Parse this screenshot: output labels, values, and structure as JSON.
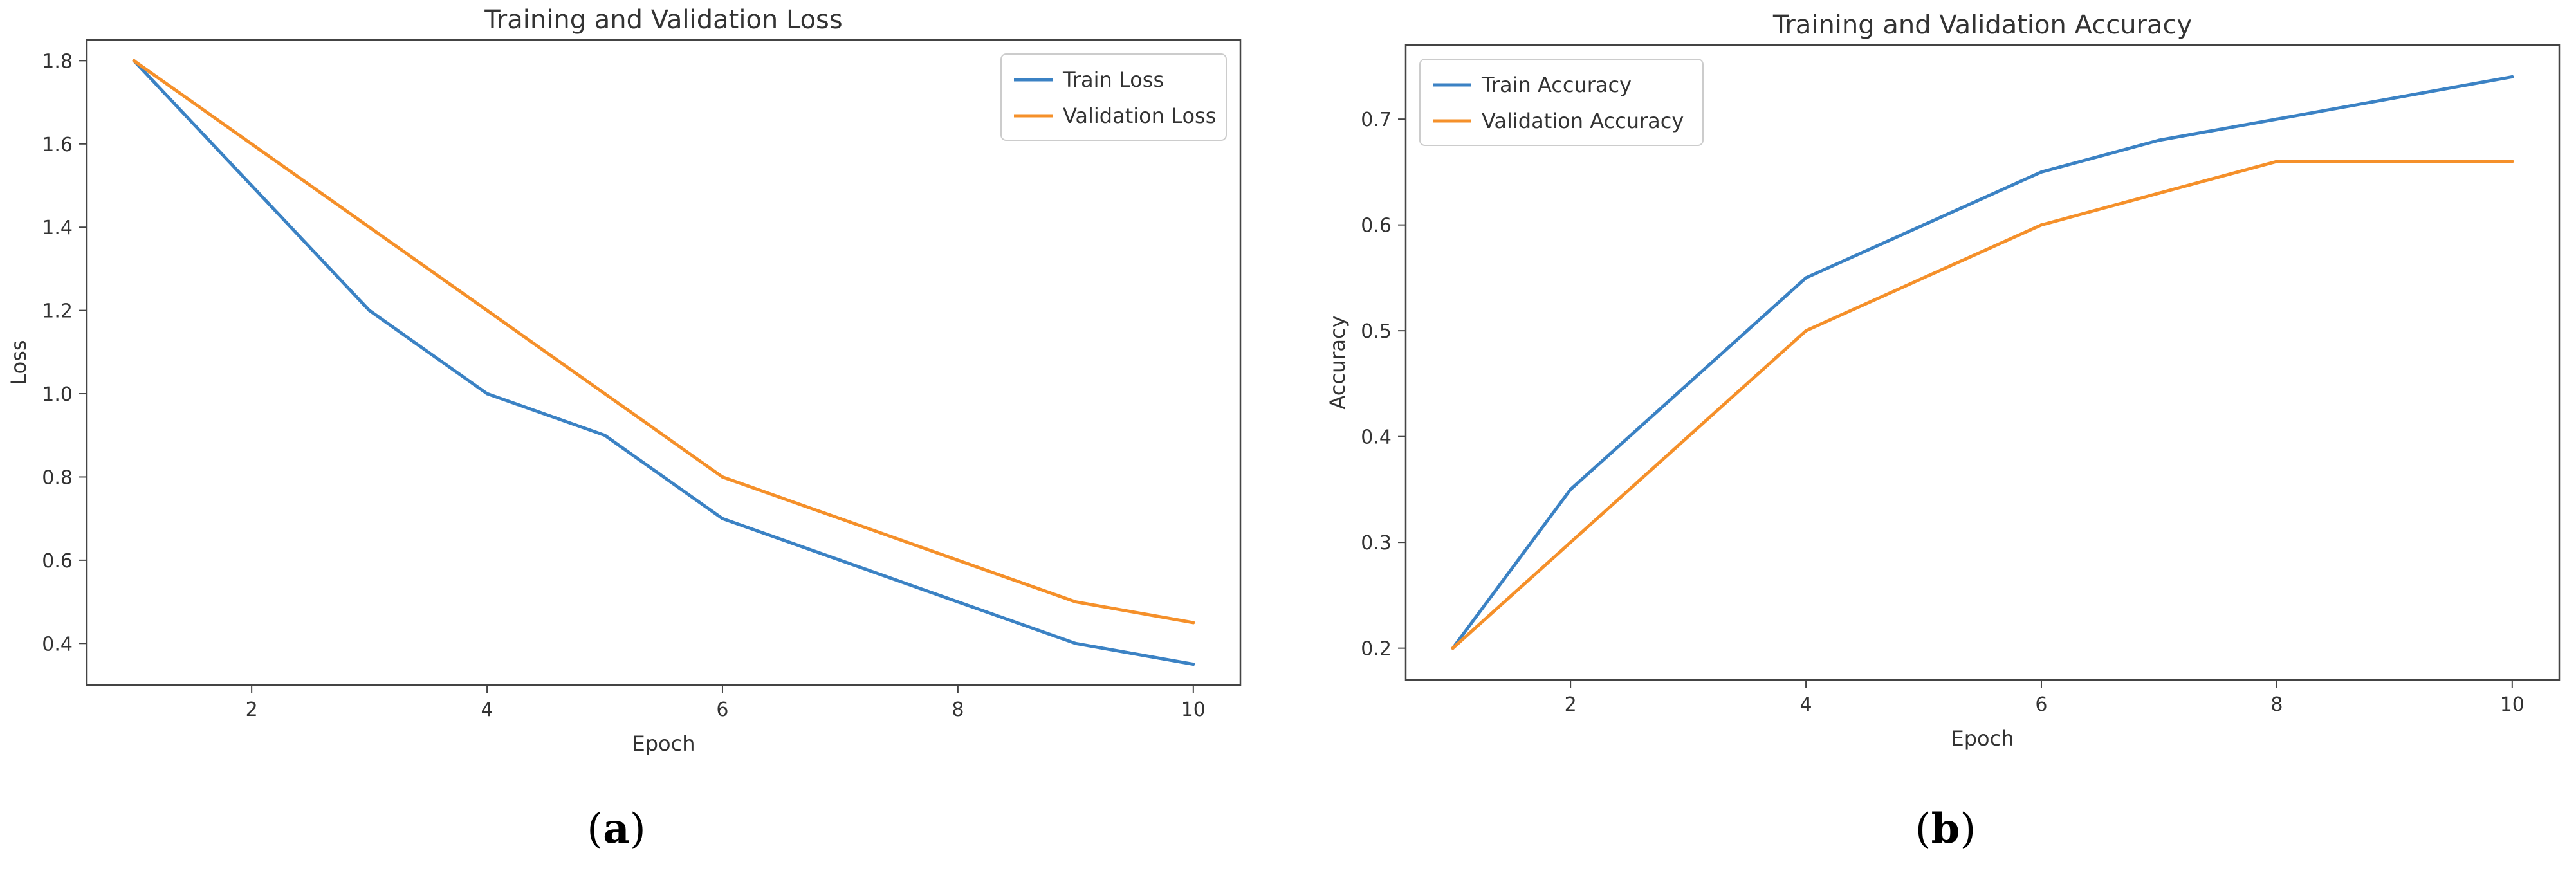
{
  "colors": {
    "train": "#3b82c4",
    "validation": "#f5902a",
    "axis": "#444444"
  },
  "chart_data": [
    {
      "type": "line",
      "title": "Training and Validation Loss",
      "xlabel": "Epoch",
      "ylabel": "Loss",
      "xlim": [
        0.6,
        10.4
      ],
      "ylim": [
        0.3,
        1.85
      ],
      "xticks": [
        2,
        4,
        6,
        8,
        10
      ],
      "yticks": [
        0.4,
        0.6,
        0.8,
        1.0,
        1.2,
        1.4,
        1.6,
        1.8
      ],
      "ytick_labels": [
        "0.4",
        "0.6",
        "0.8",
        "1.0",
        "1.2",
        "1.4",
        "1.6",
        "1.8"
      ],
      "legend": "top-right",
      "caption_open": "(",
      "caption_letter": "a",
      "caption_close": ")",
      "x": [
        1,
        2,
        3,
        4,
        5,
        6,
        7,
        8,
        9,
        10
      ],
      "series": [
        {
          "name": "Train Loss",
          "color_key": "train",
          "values": [
            1.8,
            1.5,
            1.2,
            1.0,
            0.9,
            0.7,
            0.6,
            0.5,
            0.4,
            0.35
          ]
        },
        {
          "name": "Validation Loss",
          "color_key": "validation",
          "values": [
            1.8,
            1.6,
            1.4,
            1.2,
            1.0,
            0.8,
            0.7,
            0.6,
            0.5,
            0.45
          ]
        }
      ]
    },
    {
      "type": "line",
      "title": "Training and Validation Accuracy",
      "xlabel": "Epoch",
      "ylabel": "Accuracy",
      "xlim": [
        0.6,
        10.4
      ],
      "ylim": [
        0.17,
        0.77
      ],
      "xticks": [
        2,
        4,
        6,
        8,
        10
      ],
      "yticks": [
        0.2,
        0.3,
        0.4,
        0.5,
        0.6,
        0.7
      ],
      "ytick_labels": [
        "0.2",
        "0.3",
        "0.4",
        "0.5",
        "0.6",
        "0.7"
      ],
      "legend": "top-left",
      "caption_open": "(",
      "caption_letter": "b",
      "caption_close": ")",
      "x": [
        1,
        2,
        3,
        4,
        5,
        6,
        7,
        8,
        9,
        10
      ],
      "series": [
        {
          "name": "Train Accuracy",
          "color_key": "train",
          "values": [
            0.2,
            0.35,
            0.45,
            0.55,
            0.6,
            0.65,
            0.68,
            0.7,
            0.72,
            0.74
          ]
        },
        {
          "name": "Validation Accuracy",
          "color_key": "validation",
          "values": [
            0.2,
            0.3,
            0.4,
            0.5,
            0.55,
            0.6,
            0.63,
            0.66,
            0.66,
            0.66
          ]
        }
      ]
    }
  ]
}
